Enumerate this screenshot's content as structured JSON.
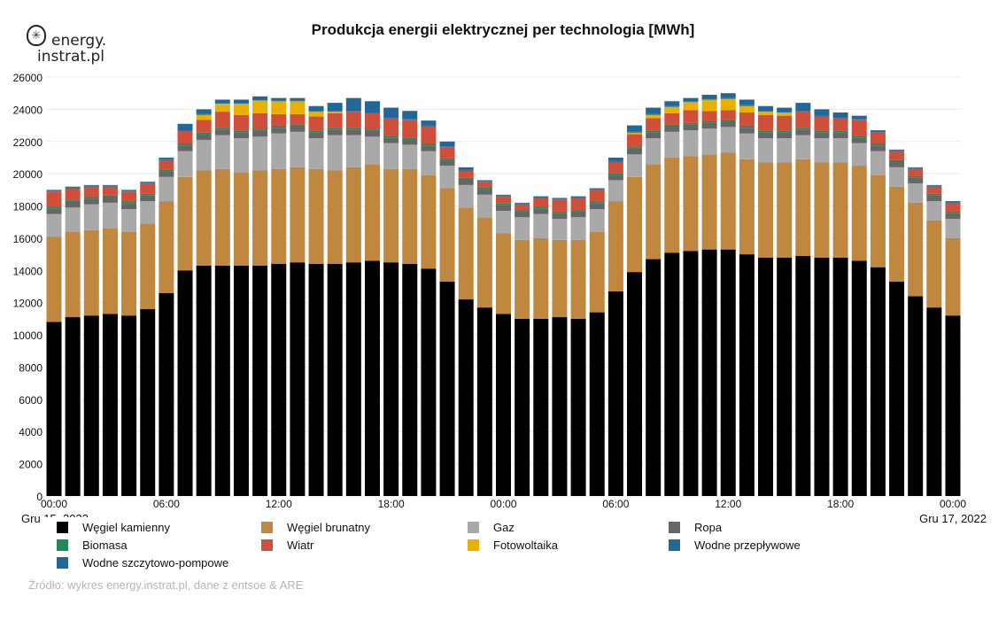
{
  "title": "Produkcja energii elektrycznej per technologia [MWh]",
  "logo": {
    "line1": "energy.",
    "line2": "instrat.pl"
  },
  "source": "Źródło: wykres energy.instrat.pl, dane z entsoe & ARE",
  "chart_data": {
    "type": "bar",
    "stacked": true,
    "title": "Produkcja energii elektrycznej per technologia [MWh]",
    "ylim": [
      0,
      26000
    ],
    "yticks": [
      "0",
      "2000",
      "4000",
      "6000",
      "8000",
      "10000",
      "12000",
      "14000",
      "16000",
      "18000",
      "20000",
      "22000",
      "24000",
      "26000"
    ],
    "xticks": [
      "00:00",
      "06:00",
      "12:00",
      "18:00",
      "00:00",
      "06:00",
      "12:00",
      "18:00",
      "00:00"
    ],
    "date_left": "Gru 15, 2022",
    "date_right": "Gru 17, 2022",
    "grid": true,
    "legend_placement": "bottom",
    "categories_hourly_count": 49,
    "series": [
      {
        "name": "Węgiel kamienny",
        "color": "#000000",
        "values": [
          10800,
          11100,
          11200,
          11300,
          11200,
          11600,
          12600,
          14000,
          14300,
          14300,
          14300,
          14300,
          14400,
          14500,
          14400,
          14400,
          14500,
          14600,
          14500,
          14400,
          14100,
          13300,
          12200,
          11700,
          11300,
          11000,
          11000,
          11100,
          11000,
          11400,
          12700,
          13900,
          14700,
          15100,
          15200,
          15300,
          15300,
          15000,
          14800,
          14800,
          14900,
          14800,
          14800,
          14600,
          14200,
          13300,
          12400,
          11700,
          11200
        ]
      },
      {
        "name": "Węgiel brunatny",
        "color": "#c0873f",
        "values": [
          5300,
          5300,
          5300,
          5300,
          5200,
          5300,
          5700,
          5800,
          5900,
          6000,
          5800,
          5900,
          5900,
          5900,
          5900,
          5800,
          5900,
          6000,
          5800,
          5900,
          5800,
          5800,
          5700,
          5600,
          5000,
          4900,
          5000,
          4800,
          4900,
          5000,
          5600,
          5900,
          5900,
          5900,
          5900,
          5900,
          6000,
          5900,
          5900,
          5900,
          6000,
          5900,
          5900,
          5900,
          5700,
          5900,
          5800,
          5400,
          4800
        ]
      },
      {
        "name": "Gaz",
        "color": "#a9a9a9",
        "values": [
          1400,
          1500,
          1600,
          1600,
          1400,
          1400,
          1500,
          1600,
          1900,
          2100,
          2100,
          2100,
          2200,
          2200,
          1900,
          2200,
          2000,
          1700,
          1600,
          1500,
          1500,
          1400,
          1400,
          1400,
          1400,
          1400,
          1500,
          1300,
          1400,
          1400,
          1300,
          1400,
          1600,
          1600,
          1600,
          1600,
          1600,
          1600,
          1500,
          1500,
          1500,
          1500,
          1500,
          1400,
          1500,
          1200,
          1200,
          1200,
          1200
        ]
      },
      {
        "name": "Ropa",
        "color": "#666666",
        "values": [
          350,
          350,
          350,
          350,
          350,
          350,
          350,
          350,
          350,
          350,
          350,
          350,
          350,
          350,
          350,
          350,
          350,
          350,
          350,
          350,
          350,
          350,
          350,
          350,
          350,
          350,
          350,
          350,
          350,
          350,
          350,
          350,
          350,
          350,
          350,
          350,
          350,
          350,
          350,
          350,
          350,
          350,
          350,
          350,
          350,
          350,
          350,
          350,
          350
        ]
      },
      {
        "name": "Biomasa",
        "color": "#1e8a5a",
        "values": [
          100,
          100,
          100,
          100,
          100,
          100,
          100,
          100,
          100,
          100,
          100,
          100,
          100,
          100,
          100,
          100,
          100,
          100,
          100,
          100,
          100,
          100,
          100,
          100,
          100,
          100,
          100,
          100,
          100,
          100,
          100,
          100,
          100,
          100,
          100,
          100,
          100,
          100,
          100,
          100,
          100,
          100,
          100,
          100,
          100,
          100,
          100,
          100,
          100
        ]
      },
      {
        "name": "Wiatr",
        "color": "#cf4f3a",
        "values": [
          950,
          750,
          650,
          550,
          650,
          650,
          600,
          800,
          800,
          1000,
          1000,
          1000,
          750,
          650,
          900,
          900,
          1000,
          1000,
          1100,
          1100,
          1100,
          700,
          450,
          350,
          450,
          350,
          550,
          750,
          750,
          750,
          700,
          800,
          800,
          700,
          800,
          650,
          600,
          850,
          1000,
          950,
          1000,
          900,
          800,
          1000,
          700,
          550,
          450,
          450,
          550
        ]
      },
      {
        "name": "Fotowoltaika",
        "color": "#e9b000",
        "values": [
          0,
          0,
          0,
          0,
          0,
          0,
          0,
          0,
          300,
          500,
          700,
          800,
          800,
          800,
          300,
          100,
          0,
          0,
          0,
          0,
          0,
          0,
          0,
          0,
          0,
          0,
          0,
          0,
          0,
          0,
          0,
          100,
          200,
          400,
          500,
          700,
          700,
          400,
          200,
          200,
          0,
          0,
          0,
          0,
          0,
          0,
          0,
          0,
          0
        ]
      },
      {
        "name": "Wodne przepływowe",
        "color": "#1f6b94",
        "values": [
          50,
          50,
          50,
          50,
          50,
          50,
          50,
          50,
          50,
          50,
          50,
          50,
          50,
          50,
          50,
          50,
          50,
          50,
          50,
          50,
          50,
          50,
          50,
          50,
          50,
          50,
          50,
          50,
          50,
          50,
          50,
          50,
          50,
          50,
          50,
          50,
          50,
          50,
          50,
          50,
          50,
          50,
          50,
          50,
          50,
          50,
          50,
          50,
          50
        ]
      },
      {
        "name": "Wodne szczytowo-pompowe",
        "color": "#22679a",
        "values": [
          50,
          50,
          50,
          50,
          50,
          50,
          100,
          400,
          300,
          200,
          200,
          200,
          150,
          150,
          300,
          500,
          800,
          700,
          600,
          500,
          300,
          300,
          150,
          50,
          50,
          50,
          50,
          50,
          50,
          50,
          200,
          400,
          400,
          300,
          200,
          250,
          300,
          350,
          300,
          250,
          500,
          400,
          300,
          200,
          100,
          50,
          50,
          50,
          50
        ]
      }
    ]
  }
}
